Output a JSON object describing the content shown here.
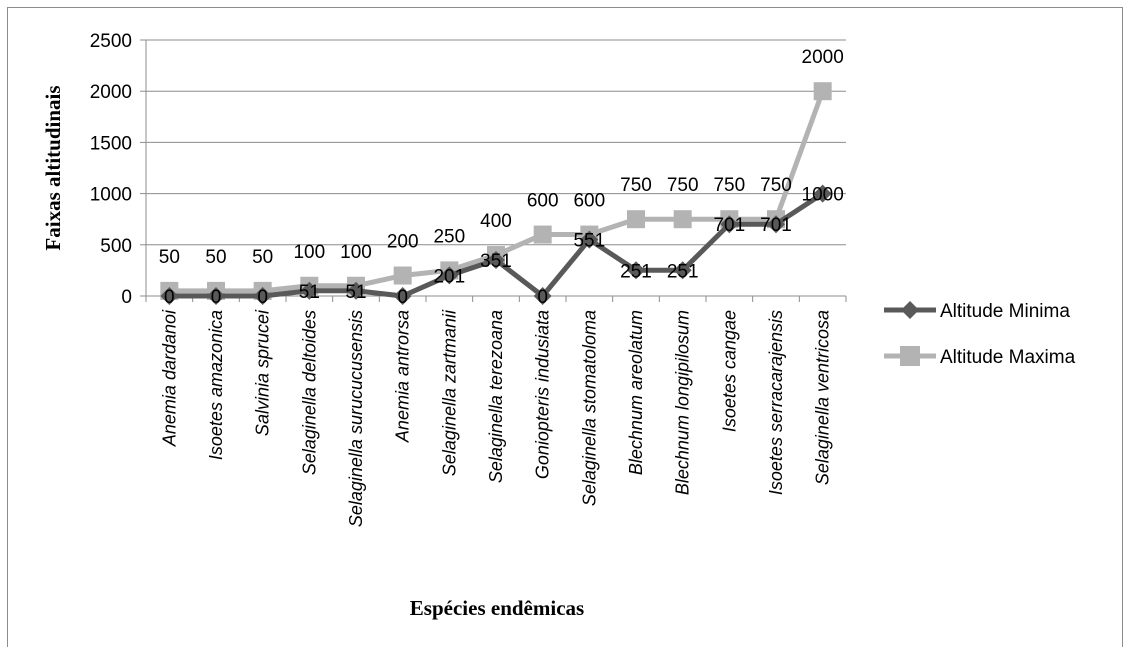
{
  "chart_data": {
    "type": "line",
    "title": "",
    "xlabel": "Espécies endêmicas",
    "ylabel": "Faixas altitudinais",
    "ylim": [
      0,
      2500
    ],
    "yticks": [
      "0",
      "500",
      "1000",
      "1500",
      "2000",
      "2500"
    ],
    "grid": "horizontal",
    "legend_position": "right",
    "categories": [
      "Anemia dardanoi",
      "Isoetes amazonica",
      "Salvinia sprucei",
      "Selaginella deltoides",
      "Selaginella surucucusensis",
      "Anemia antrorsa",
      "Selaginella zartmanii",
      "Selaginella terezoana",
      "Goniopteris indusiata",
      "Selaginella stomatoloma",
      "Blechnum areolatum",
      "Blechnum longipilosum",
      "Isoetes cangae",
      "Isoetes serracarajensis",
      "Selaginella ventricosa"
    ],
    "series": [
      {
        "name": "Altitude Minima",
        "color": "#595959",
        "marker": "diamond",
        "values": [
          0,
          0,
          0,
          51,
          51,
          0,
          201,
          351,
          0,
          551,
          251,
          251,
          701,
          701,
          1000
        ],
        "labels": [
          "0",
          "0",
          "0",
          "51",
          "51",
          "0",
          "201",
          "351",
          "0",
          "551",
          "251",
          "251",
          "701",
          "701",
          "1000"
        ]
      },
      {
        "name": "Altitude Maxima",
        "color": "#b3b3b3",
        "marker": "square",
        "values": [
          50,
          50,
          50,
          100,
          100,
          200,
          250,
          400,
          600,
          600,
          750,
          750,
          750,
          750,
          2000
        ],
        "labels": [
          "50",
          "50",
          "50",
          "100",
          "100",
          "200",
          "250",
          "400",
          "600",
          "600",
          "750",
          "750",
          "750",
          "750",
          "2000"
        ]
      }
    ]
  }
}
